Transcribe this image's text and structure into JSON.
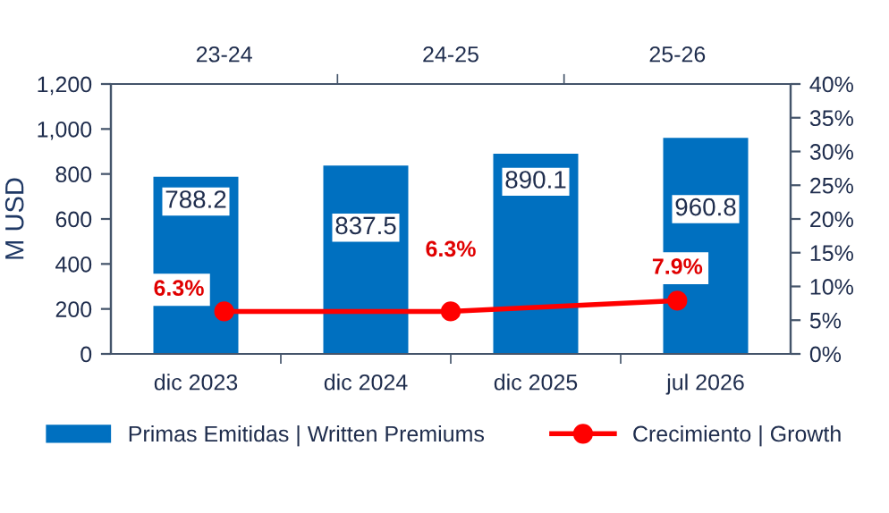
{
  "chart_data": [
    {
      "type": "bar",
      "ylabel": "M USD",
      "categories": [
        "dic 2023",
        "dic 2024",
        "dic 2025",
        "jul 2026"
      ],
      "series": [
        {
          "name": "Primas Emitidas | Written Premiums",
          "type": "bar",
          "color": "#0070c0",
          "values": [
            788.2,
            837.5,
            890.1,
            960.8
          ]
        }
      ],
      "ylim": [
        0,
        1200
      ],
      "yticks": [
        0,
        200,
        400,
        600,
        800,
        {
          "value": 1000,
          "label": "1,000"
        },
        {
          "value": 1200,
          "label": "1,200"
        }
      ],
      "data_labels": true,
      "grid": false,
      "legend": "bottom"
    },
    {
      "type": "line",
      "categories": [
        "23-24",
        "24-25",
        "25-26"
      ],
      "series": [
        {
          "name": "Crecimiento | Growth",
          "color": "#ff0000",
          "marker": "circle",
          "values": [
            6.3,
            6.3,
            7.9
          ],
          "value_labels": [
            "6.3%",
            "6.3%",
            "7.9%"
          ]
        }
      ],
      "ylim": [
        0,
        40
      ],
      "yticks": [
        {
          "value": 0,
          "label": "0%"
        },
        {
          "value": 5,
          "label": "5%"
        },
        {
          "value": 10,
          "label": "10%"
        },
        {
          "value": 15,
          "label": "15%"
        },
        {
          "value": 20,
          "label": "20%"
        },
        {
          "value": 25,
          "label": "25%"
        },
        {
          "value": 30,
          "label": "30%"
        },
        {
          "value": 35,
          "label": "35%"
        },
        {
          "value": 40,
          "label": "40%"
        }
      ],
      "grid": false,
      "legend": "bottom"
    }
  ]
}
